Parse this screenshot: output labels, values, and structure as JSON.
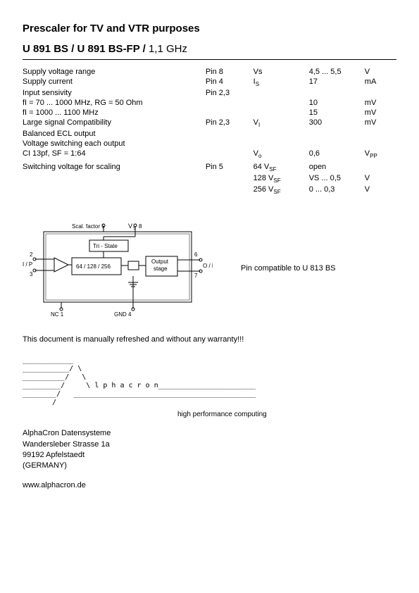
{
  "title": "Prescaler for TV and VTR purposes",
  "subtitle_bold": "U 891 BS / U 891 BS-FP / ",
  "subtitle_reg": "1,1 GHz",
  "specs": [
    {
      "desc": "Supply voltage range",
      "pin": "Pin 8",
      "sym": "Vs",
      "sym_sub": "",
      "val": "4,5 ... 5,5",
      "unit": "V"
    },
    {
      "desc": "Supply current",
      "pin": "Pin 4",
      "sym": "I",
      "sym_sub": "S",
      "val": "17",
      "unit": "mA"
    },
    {
      "desc": "Input sensivity",
      "pin": "Pin 2,3",
      "sym": "",
      "sym_sub": "",
      "val": "",
      "unit": ""
    },
    {
      "desc": "fI =    70 ... 1000 MHz, RG = 50 Ohm",
      "pin": "",
      "sym": "",
      "sym_sub": "",
      "val": "10",
      "unit": "mV"
    },
    {
      "desc": "fI = 1000 ... 1100 MHz",
      "pin": "",
      "sym": "",
      "sym_sub": "",
      "val": "15",
      "unit": "mV"
    },
    {
      "desc": "Large signal Compatibility",
      "pin": "Pin 2,3",
      "sym": "V",
      "sym_sub": "I",
      "val": "300",
      "unit": "mV"
    },
    {
      "desc": "Balanced ECL output",
      "pin": "",
      "sym": "",
      "sym_sub": "",
      "val": "",
      "unit": ""
    },
    {
      "desc": "Voltage switching each output",
      "pin": "",
      "sym": "",
      "sym_sub": "",
      "val": "",
      "unit": ""
    },
    {
      "desc": "CI  13pf, SF = 1:64",
      "pin": "",
      "sym": "V",
      "sym_sub": "o",
      "val": "0,6",
      "unit": "Vpp"
    },
    {
      "desc": " ",
      "pin": "",
      "sym": "",
      "sym_sub": "",
      "val": "",
      "unit": ""
    },
    {
      "desc": "Switching voltage for scaling",
      "pin": "Pin 5",
      "sym": "  64 V",
      "sym_sub": "SF",
      "val": "open",
      "unit": ""
    },
    {
      "desc": "",
      "pin": "",
      "sym": "128 V",
      "sym_sub": "SF",
      "val": "VS ... 0,5",
      "unit": "V"
    },
    {
      "desc": "",
      "pin": "",
      "sym": "256 V",
      "sym_sub": "SF",
      "val": "  0 ... 0,3",
      "unit": "V"
    }
  ],
  "diagram": {
    "labels": {
      "scal": "Scal. factor  5",
      "vs": "V",
      "vs_sub": "S",
      "pin8": "8",
      "tri": "Tri - State",
      "div": "64 / 128 / 256",
      "out": "Output\nstage",
      "p2": "2",
      "p3": "3",
      "p6": "6",
      "p7": "7",
      "ip": "I / P",
      "op": "O / P",
      "nc": "NC  1",
      "gnd": "GND  4"
    },
    "note": "Pin compatible to U 813 BS"
  },
  "warranty": "This document is manually refreshed and without any warranty!!!",
  "ascii": "____________\n___________/ \\\n__________/   \\\n_________/     \\ l p h a c r o n_______________________\n________/   ___________________________________________\n       /",
  "hpc": "high performance computing",
  "footer": {
    "l1": "AlphaCron Datensysteme",
    "l2": "Wandersleber Strasse 1a",
    "l3": "99192 Apfelstaedt",
    "l4": "(GERMANY)",
    "web": "www.alphacron.de"
  }
}
